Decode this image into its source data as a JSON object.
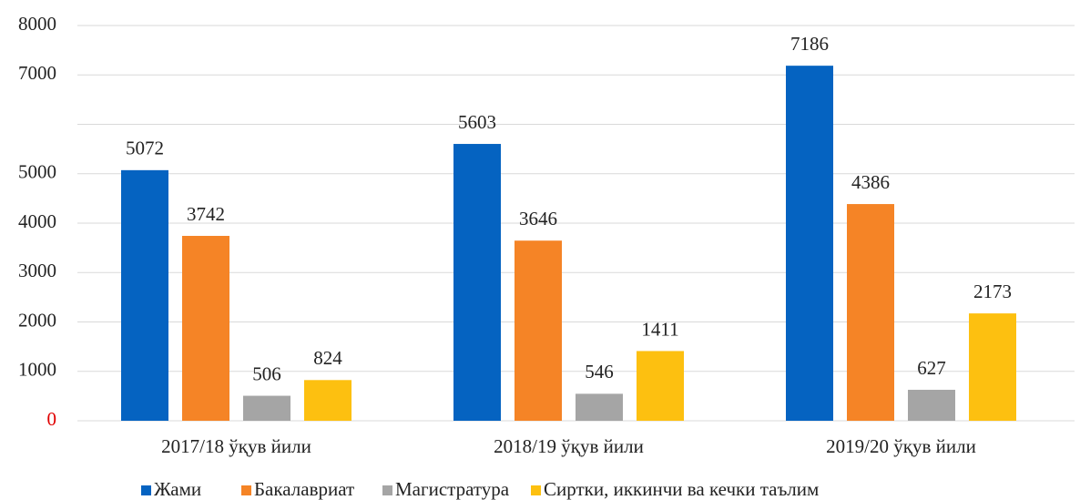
{
  "chart_data": {
    "type": "bar",
    "categories": [
      "2017/18 ўқув йили",
      "2018/19 ўқув йили",
      "2019/20 ўқув йили"
    ],
    "series": [
      {
        "name": "Жами",
        "color": "#0563c1",
        "values": [
          5072,
          5603,
          7186
        ]
      },
      {
        "name": "Бакалавриат",
        "color": "#f58426",
        "values": [
          3742,
          3646,
          4386
        ]
      },
      {
        "name": "Магистратура",
        "color": "#a5a5a5",
        "values": [
          506,
          546,
          627
        ]
      },
      {
        "name": "Сиртки, иккинчи ва кечки таълим",
        "color": "#fdc010",
        "values": [
          824,
          1411,
          2173
        ]
      }
    ],
    "ylim": [
      0,
      8000
    ],
    "yticks": [
      0,
      1000,
      2000,
      3000,
      4000,
      5000,
      {
        "value": 6000,
        "label": null
      },
      7000,
      8000
    ],
    "grid": true,
    "legend": "bottom"
  }
}
